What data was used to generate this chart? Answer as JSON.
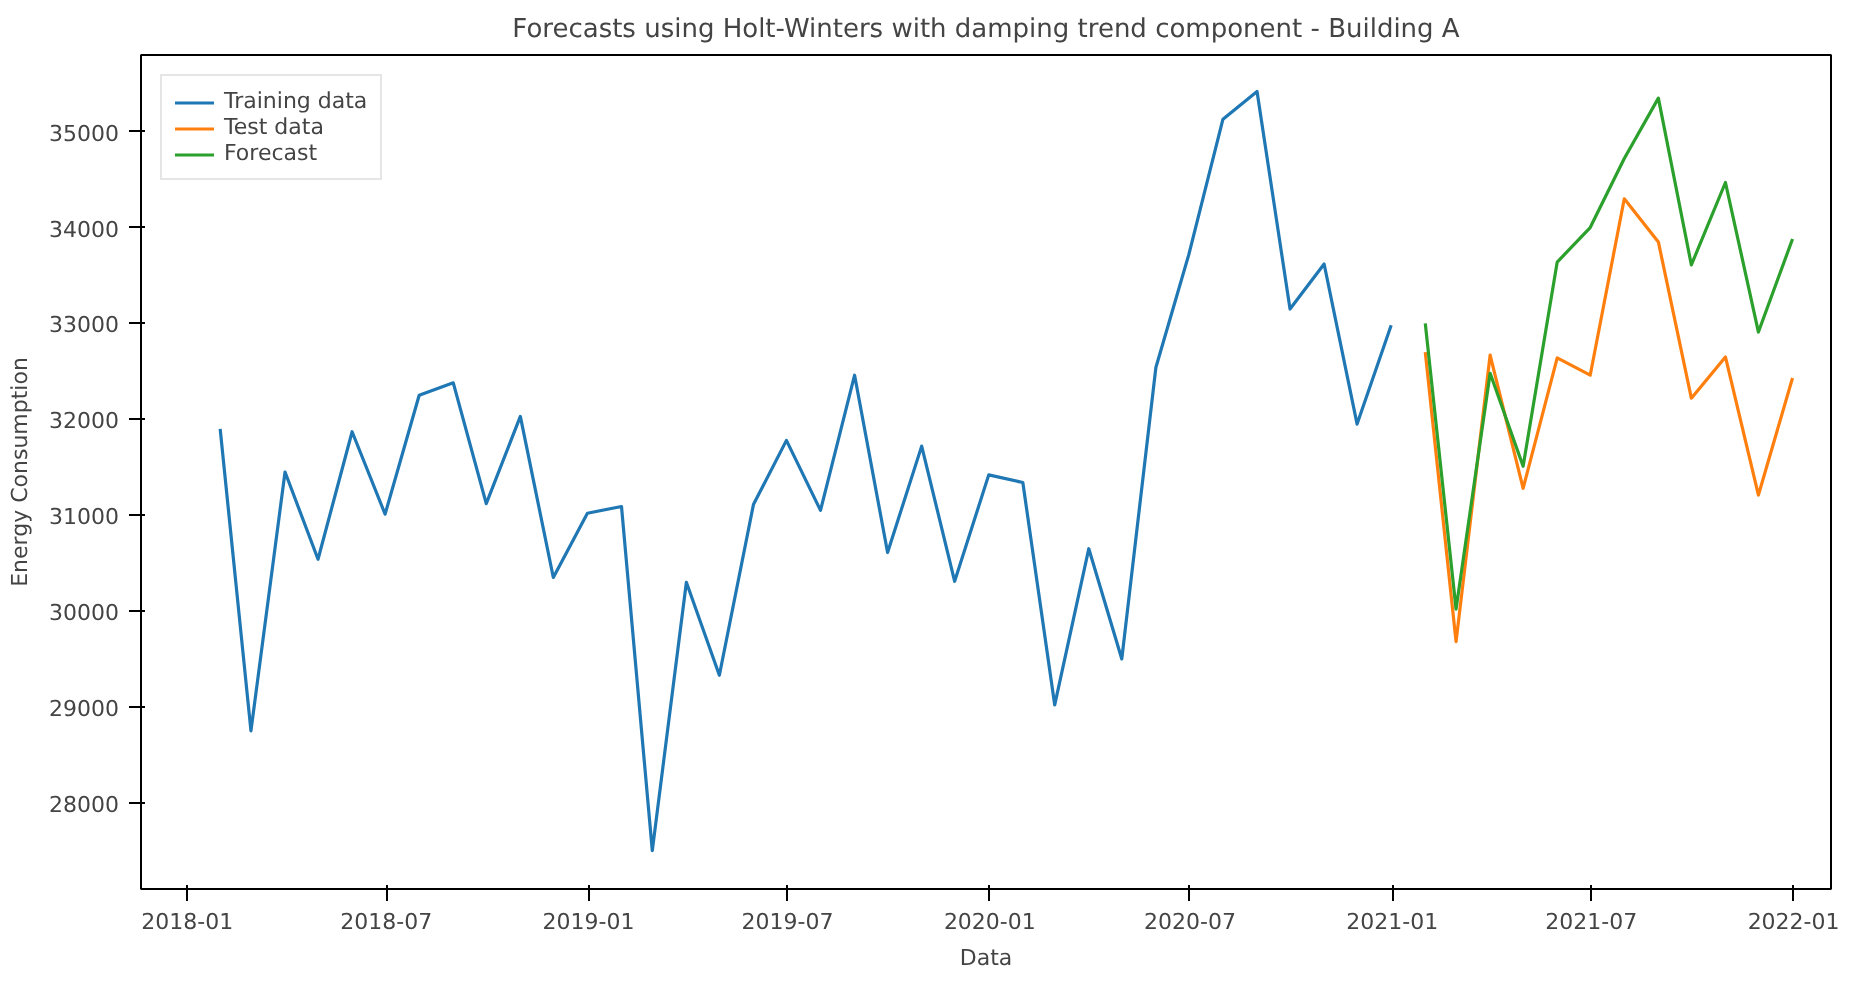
{
  "chart_data": {
    "type": "line",
    "title": "Forecasts using Holt-Winters with damping trend component - Building A",
    "xlabel": "Data",
    "ylabel": "Energy Consumption",
    "xlim": [
      "2017-11-20",
      "2022-02-04"
    ],
    "xticks": [
      "2018-01",
      "2018-07",
      "2019-01",
      "2019-07",
      "2020-01",
      "2020-07",
      "2021-01",
      "2021-07",
      "2022-01"
    ],
    "ylim": [
      27100,
      35800
    ],
    "yticks": [
      28000,
      29000,
      30000,
      31000,
      32000,
      33000,
      34000,
      35000
    ],
    "grid": false,
    "legend": "top left",
    "line_style": "solid",
    "marker": "none",
    "series": [
      {
        "name": "Training data",
        "color": "#1f77b4",
        "x": [
          "2018-01-31",
          "2018-02-28",
          "2018-03-31",
          "2018-04-30",
          "2018-05-31",
          "2018-06-30",
          "2018-07-31",
          "2018-08-31",
          "2018-09-30",
          "2018-10-31",
          "2018-11-30",
          "2018-12-31",
          "2019-01-31",
          "2019-02-28",
          "2019-03-31",
          "2019-04-30",
          "2019-05-31",
          "2019-06-30",
          "2019-07-31",
          "2019-08-31",
          "2019-09-30",
          "2019-10-31",
          "2019-11-30",
          "2019-12-31",
          "2020-01-31",
          "2020-02-29",
          "2020-03-31",
          "2020-04-30",
          "2020-05-31",
          "2020-06-30",
          "2020-07-31",
          "2020-08-31",
          "2020-09-30",
          "2020-10-31",
          "2020-11-30",
          "2020-12-31"
        ],
        "values": [
          31900,
          28750,
          31450,
          30540,
          31870,
          31010,
          32250,
          32380,
          31120,
          32030,
          30350,
          31020,
          31090,
          27500,
          30300,
          29330,
          31110,
          31780,
          31050,
          32460,
          30610,
          31720,
          30310,
          31420,
          31340,
          29020,
          30650,
          29500,
          32540,
          33720,
          35130,
          35420,
          33150,
          33620,
          31950,
          32980
        ]
      },
      {
        "name": "Test data",
        "color": "#ff7f0e",
        "x": [
          "2021-01-31",
          "2021-02-28",
          "2021-03-31",
          "2021-04-30",
          "2021-05-31",
          "2021-06-30",
          "2021-07-31",
          "2021-08-31",
          "2021-09-30",
          "2021-10-31",
          "2021-11-30",
          "2021-12-31"
        ],
        "values": [
          32700,
          29680,
          32670,
          31280,
          32640,
          32460,
          34300,
          33850,
          32220,
          32650,
          31210,
          32430
        ]
      },
      {
        "name": "Forecast",
        "color": "#2ca02c",
        "x": [
          "2021-01-31",
          "2021-02-28",
          "2021-03-31",
          "2021-04-30",
          "2021-05-31",
          "2021-06-30",
          "2021-07-31",
          "2021-08-31",
          "2021-09-30",
          "2021-10-31",
          "2021-11-30",
          "2021-12-31"
        ],
        "values": [
          33000,
          30020,
          32480,
          31510,
          33640,
          34000,
          34720,
          35350,
          33610,
          34470,
          32910,
          33880
        ]
      }
    ]
  }
}
